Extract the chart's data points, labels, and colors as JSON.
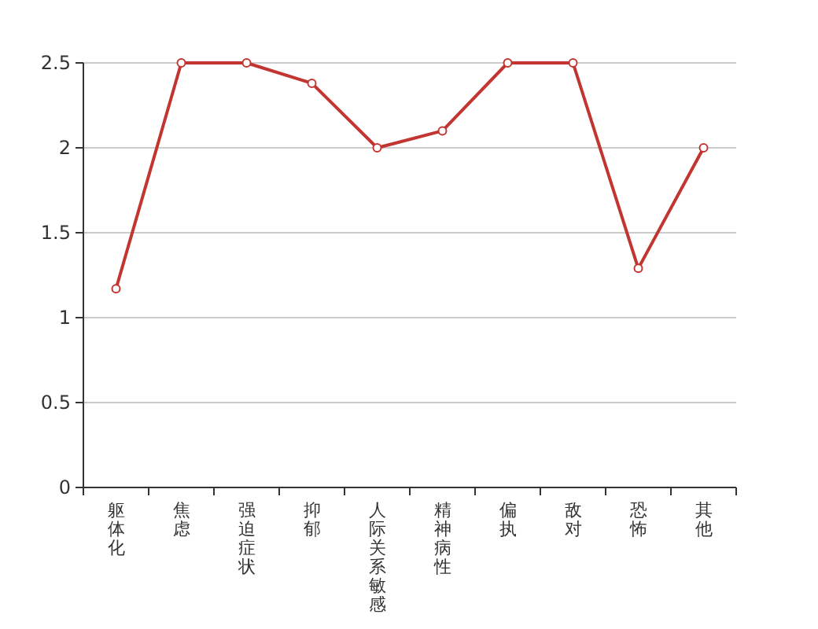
{
  "chart_data": {
    "type": "line",
    "categories": [
      "躯体化",
      "焦虑",
      "强迫症状",
      "抑郁",
      "人际关系敏感",
      "精神病性",
      "偏执",
      "敌对",
      "恐怖",
      "其他"
    ],
    "values": [
      1.17,
      2.5,
      2.5,
      2.38,
      2.0,
      2.1,
      2.5,
      2.5,
      1.29,
      2.0
    ],
    "color": "#c23531",
    "ylim": [
      0,
      2.5
    ],
    "yticks": [
      0,
      0.5,
      1,
      1.5,
      2,
      2.5
    ],
    "grid": "y",
    "marker": "circle",
    "line_style": "solid"
  }
}
